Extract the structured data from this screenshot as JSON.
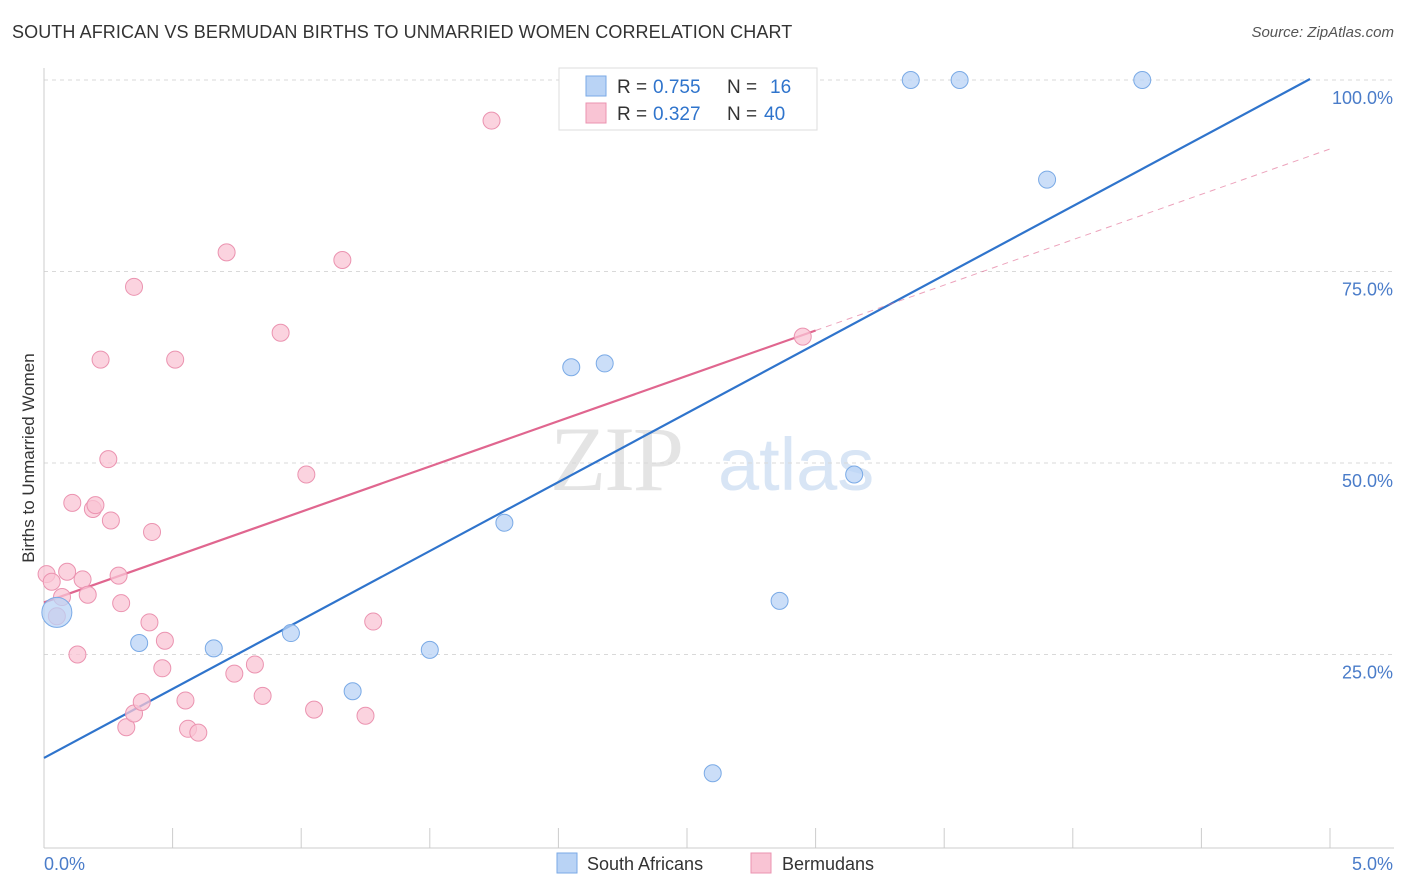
{
  "title": "SOUTH AFRICAN VS BERMUDAN BIRTHS TO UNMARRIED WOMEN CORRELATION CHART",
  "source": "Source: ZipAtlas.com",
  "watermark": {
    "zip": "ZIP",
    "atlas": "atlas"
  },
  "colors": {
    "blue_fill": "#b9d3f5",
    "blue_stroke": "#7aaae6",
    "blue_line": "#2f74cc",
    "pink_fill": "#f9c4d4",
    "pink_stroke": "#eb93b0",
    "pink_line": "#e0668f",
    "label_blue": "#4a7cc9",
    "grid": "#d9d9d9"
  },
  "legend": {
    "rows": [
      {
        "r_label": "R = ",
        "r_value": "0.755",
        "n_label": "N = ",
        "n_value": "16"
      },
      {
        "r_label": "R = ",
        "r_value": "0.327",
        "n_label": "N = ",
        "n_value": "40"
      }
    ]
  },
  "chart_data": {
    "type": "scatter",
    "title": "SOUTH AFRICAN VS BERMUDAN BIRTHS TO UNMARRIED WOMEN CORRELATION CHART",
    "xlabel": "",
    "ylabel": "Births to Unmarried Women",
    "xlim": [
      0,
      5
    ],
    "ylim": [
      0,
      105
    ],
    "x_tick_labels": [
      {
        "value": 0,
        "label": "0.0%"
      },
      {
        "value": 5,
        "label": "5.0%"
      }
    ],
    "y_tick_labels": [
      {
        "value": 25,
        "label": "25.0%"
      },
      {
        "value": 50,
        "label": "50.0%"
      },
      {
        "value": 75,
        "label": "75.0%"
      },
      {
        "value": 100,
        "label": "100.0%"
      }
    ],
    "series": [
      {
        "name": "South Africans",
        "color": "blue",
        "r": 0.755,
        "n": 16,
        "points": [
          {
            "x": 0.05,
            "y": 30.5,
            "big": true
          },
          {
            "x": 0.37,
            "y": 26.5
          },
          {
            "x": 0.66,
            "y": 25.8
          },
          {
            "x": 0.96,
            "y": 27.8
          },
          {
            "x": 1.2,
            "y": 20.2
          },
          {
            "x": 1.5,
            "y": 25.6
          },
          {
            "x": 1.79,
            "y": 42.2
          },
          {
            "x": 2.05,
            "y": 62.5
          },
          {
            "x": 2.18,
            "y": 63.0
          },
          {
            "x": 2.6,
            "y": 9.5
          },
          {
            "x": 2.86,
            "y": 32.0
          },
          {
            "x": 3.15,
            "y": 48.5
          },
          {
            "x": 3.37,
            "y": 100.0
          },
          {
            "x": 3.56,
            "y": 100.0
          },
          {
            "x": 3.9,
            "y": 87.0
          },
          {
            "x": 4.27,
            "y": 100.0
          }
        ],
        "trend": {
          "x0": 0,
          "y0": 11.5,
          "x1": 5.0,
          "y1": 100.5
        }
      },
      {
        "name": "Bermudans",
        "color": "pink",
        "r": 0.327,
        "n": 40,
        "points": [
          {
            "x": 0.01,
            "y": 35.5
          },
          {
            "x": 0.03,
            "y": 34.5
          },
          {
            "x": 0.05,
            "y": 30.0
          },
          {
            "x": 0.07,
            "y": 32.5
          },
          {
            "x": 0.09,
            "y": 35.8
          },
          {
            "x": 0.11,
            "y": 44.8
          },
          {
            "x": 0.13,
            "y": 25.0
          },
          {
            "x": 0.15,
            "y": 34.8
          },
          {
            "x": 0.17,
            "y": 32.8
          },
          {
            "x": 0.19,
            "y": 44.0
          },
          {
            "x": 0.2,
            "y": 44.5
          },
          {
            "x": 0.22,
            "y": 63.5
          },
          {
            "x": 0.25,
            "y": 50.5
          },
          {
            "x": 0.26,
            "y": 42.5
          },
          {
            "x": 0.29,
            "y": 35.3
          },
          {
            "x": 0.3,
            "y": 31.7
          },
          {
            "x": 0.32,
            "y": 15.5
          },
          {
            "x": 0.35,
            "y": 17.3
          },
          {
            "x": 0.35,
            "y": 73.0
          },
          {
            "x": 0.38,
            "y": 18.8
          },
          {
            "x": 0.41,
            "y": 29.2
          },
          {
            "x": 0.42,
            "y": 41.0
          },
          {
            "x": 0.46,
            "y": 23.2
          },
          {
            "x": 0.47,
            "y": 26.8
          },
          {
            "x": 0.51,
            "y": 63.5
          },
          {
            "x": 0.55,
            "y": 19.0
          },
          {
            "x": 0.56,
            "y": 15.3
          },
          {
            "x": 0.6,
            "y": 14.8
          },
          {
            "x": 0.71,
            "y": 77.5
          },
          {
            "x": 0.74,
            "y": 22.5
          },
          {
            "x": 0.82,
            "y": 23.7
          },
          {
            "x": 0.85,
            "y": 19.6
          },
          {
            "x": 0.92,
            "y": 67.0
          },
          {
            "x": 1.02,
            "y": 48.5
          },
          {
            "x": 1.05,
            "y": 17.8
          },
          {
            "x": 1.16,
            "y": 76.5
          },
          {
            "x": 1.25,
            "y": 17.0
          },
          {
            "x": 1.28,
            "y": 29.3
          },
          {
            "x": 1.74,
            "y": 94.7
          },
          {
            "x": 2.95,
            "y": 66.5
          }
        ],
        "trend": {
          "x0": 0,
          "y0": 31.8,
          "x1": 3.0,
          "y1": 67.3
        },
        "trend_dashed": {
          "x0": 3.0,
          "y0": 67.3,
          "x1": 5.0,
          "y1": 91.0
        }
      }
    ],
    "legend_position": "top-center"
  }
}
